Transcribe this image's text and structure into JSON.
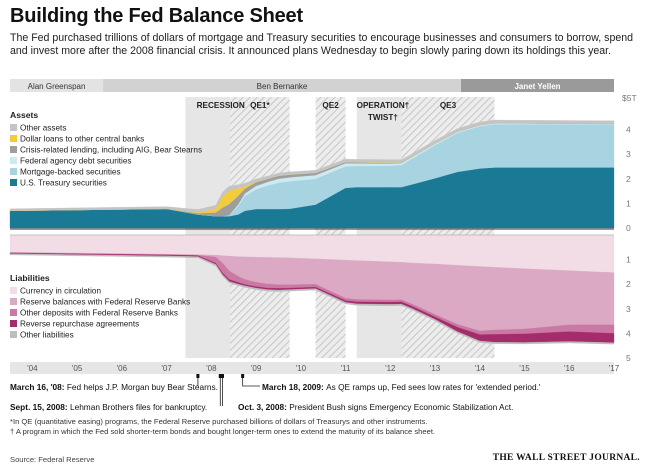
{
  "title": "Building the Fed Balance Sheet",
  "subtitle": "The Fed purchased trillions of dollars of mortgage and Treasury securities to encourage businesses and consumers to borrow, spend and invest more after the 2008 financial crisis. It announced plans Wednesday to begin slowly paring down its holdings this year.",
  "chairs": [
    {
      "name": "Alan Greenspan",
      "start": 2004.0,
      "end": 2006.08
    },
    {
      "name": "Ben Bernanke",
      "start": 2006.08,
      "end": 2014.08
    },
    {
      "name": "Janet Yellen",
      "start": 2014.08,
      "end": 2017.5
    }
  ],
  "periods": [
    {
      "label": "RECESSION",
      "label2": "",
      "start": 2007.92,
      "end": 2009.5,
      "style": "solid"
    },
    {
      "label": "QE1",
      "label2": "",
      "footnote": "*",
      "start": 2008.92,
      "end": 2010.25,
      "style": "hatch"
    },
    {
      "label": "QE2",
      "label2": "",
      "footnote": "",
      "start": 2010.83,
      "end": 2011.5,
      "style": "hatch"
    },
    {
      "label": "OPERATION",
      "label2": "TWIST",
      "footnote": "†",
      "start": 2011.75,
      "end": 2012.92,
      "style": "solid"
    },
    {
      "label": "QE3",
      "label2": "",
      "footnote": "",
      "start": 2012.75,
      "end": 2014.83,
      "style": "hatch"
    }
  ],
  "chart_data": {
    "type": "area",
    "x_ticks": [
      "'04",
      "'05",
      "'06",
      "'07",
      "'08",
      "'09",
      "'10",
      "'11",
      "'12",
      "'13",
      "'14",
      "'15",
      "'16",
      "'17"
    ],
    "assets": {
      "header": "Assets",
      "unit_label": "$5T",
      "y_ticks": [
        "4",
        "3",
        "2",
        "1",
        "0"
      ],
      "ylim": [
        0,
        5
      ],
      "x": [
        2004.0,
        2007.5,
        2008.2,
        2008.6,
        2008.75,
        2008.9,
        2009.1,
        2009.25,
        2009.5,
        2009.75,
        2010.0,
        2010.25,
        2010.83,
        2011.5,
        2011.75,
        2012.5,
        2012.75,
        2013.0,
        2013.5,
        2014.0,
        2014.5,
        2014.83,
        2015.5,
        2016.5,
        2017.5
      ],
      "series": [
        {
          "name": "U.S. Treasury securities",
          "color": "#1a7a95",
          "values": [
            0.7,
            0.78,
            0.55,
            0.48,
            0.48,
            0.48,
            0.55,
            0.7,
            0.77,
            0.77,
            0.77,
            0.78,
            0.95,
            1.63,
            1.66,
            1.66,
            1.66,
            1.78,
            2.02,
            2.28,
            2.42,
            2.46,
            2.46,
            2.46,
            2.46
          ]
        },
        {
          "name": "Mortgage-backed securities",
          "color": "#a8d4e2",
          "values": [
            0,
            0,
            0,
            0,
            0,
            0.02,
            0.35,
            0.6,
            0.8,
            0.95,
            1.07,
            1.12,
            1.05,
            0.88,
            0.86,
            0.87,
            0.9,
            1.05,
            1.35,
            1.58,
            1.72,
            1.76,
            1.76,
            1.76,
            1.76
          ]
        },
        {
          "name": "Federal agency debt securities",
          "color": "#cde9f1",
          "values": [
            0,
            0,
            0,
            0,
            0,
            0.02,
            0.06,
            0.1,
            0.14,
            0.15,
            0.16,
            0.16,
            0.15,
            0.12,
            0.11,
            0.09,
            0.08,
            0.07,
            0.06,
            0.05,
            0.04,
            0.04,
            0.03,
            0.02,
            0.01
          ]
        },
        {
          "name": "Crisis-related lending, including AIG, Bear Stearns",
          "color": "#9e9e9e",
          "values": [
            0,
            0,
            0.05,
            0.15,
            0.35,
            0.45,
            0.35,
            0.2,
            0.15,
            0.12,
            0.12,
            0.11,
            0.09,
            0.05,
            0.04,
            0.02,
            0.01,
            0.01,
            0.01,
            0.01,
            0.01,
            0.01,
            0.01,
            0.01,
            0.01
          ]
        },
        {
          "name": "Dollar loans to other central banks",
          "color": "#f2cc3c",
          "values": [
            0,
            0,
            0.03,
            0.15,
            0.45,
            0.55,
            0.3,
            0.1,
            0.02,
            0.01,
            0,
            0,
            0,
            0,
            0,
            0.02,
            0.01,
            0,
            0,
            0,
            0,
            0,
            0,
            0,
            0
          ]
        },
        {
          "name": "Other assets",
          "color": "#c4c4c4",
          "values": [
            0.08,
            0.09,
            0.12,
            0.15,
            0.18,
            0.18,
            0.15,
            0.12,
            0.11,
            0.11,
            0.11,
            0.11,
            0.11,
            0.12,
            0.12,
            0.12,
            0.12,
            0.12,
            0.12,
            0.12,
            0.12,
            0.12,
            0.12,
            0.12,
            0.12
          ]
        }
      ]
    },
    "liabilities": {
      "header": "Liabilities",
      "y_ticks": [
        "1",
        "2",
        "3",
        "4",
        "5"
      ],
      "ylim": [
        0,
        5
      ],
      "x": [
        2004.0,
        2007.5,
        2008.2,
        2008.6,
        2008.75,
        2008.9,
        2009.1,
        2009.25,
        2009.5,
        2009.75,
        2010.0,
        2010.25,
        2010.83,
        2011.5,
        2011.75,
        2012.5,
        2012.75,
        2013.0,
        2013.5,
        2014.0,
        2014.5,
        2014.83,
        2015.5,
        2016.5,
        2017.5
      ],
      "series": [
        {
          "name": "Currency in circulation",
          "color": "#f2dce6",
          "values": [
            0.7,
            0.78,
            0.8,
            0.82,
            0.84,
            0.86,
            0.88,
            0.89,
            0.9,
            0.91,
            0.92,
            0.93,
            0.97,
            1.02,
            1.04,
            1.09,
            1.11,
            1.14,
            1.18,
            1.23,
            1.28,
            1.31,
            1.37,
            1.45,
            1.53
          ]
        },
        {
          "name": "Reserve balances with Federal Reserve Banks",
          "color": "#dca9c4",
          "values": [
            0.02,
            0.02,
            0.02,
            0.08,
            0.3,
            0.6,
            0.8,
            0.92,
            1.02,
            1.08,
            1.1,
            1.09,
            1.03,
            1.55,
            1.58,
            1.55,
            1.52,
            1.68,
            2.05,
            2.4,
            2.62,
            2.55,
            2.45,
            2.2,
            2.12
          ]
        },
        {
          "name": "Other deposits with Federal Reserve Banks",
          "color": "#c979a3",
          "values": [
            0.01,
            0.01,
            0.02,
            0.25,
            0.4,
            0.35,
            0.25,
            0.2,
            0.18,
            0.17,
            0.15,
            0.14,
            0.12,
            0.1,
            0.1,
            0.09,
            0.09,
            0.09,
            0.1,
            0.12,
            0.15,
            0.18,
            0.2,
            0.28,
            0.35
          ]
        },
        {
          "name": "Reverse repurchase agreements",
          "color": "#a52c6a",
          "values": [
            0.03,
            0.04,
            0.04,
            0.05,
            0.07,
            0.08,
            0.07,
            0.06,
            0.06,
            0.06,
            0.07,
            0.06,
            0.06,
            0.07,
            0.08,
            0.09,
            0.09,
            0.09,
            0.1,
            0.18,
            0.26,
            0.32,
            0.35,
            0.4,
            0.38
          ]
        },
        {
          "name": "Other liabilities",
          "color": "#bdbdbd",
          "values": [
            0.05,
            0.05,
            0.05,
            0.06,
            0.06,
            0.06,
            0.06,
            0.06,
            0.06,
            0.06,
            0.06,
            0.06,
            0.06,
            0.06,
            0.06,
            0.06,
            0.06,
            0.06,
            0.06,
            0.06,
            0.06,
            0.06,
            0.06,
            0.06,
            0.06
          ]
        }
      ]
    },
    "annotations": [
      {
        "date": "March 16, '08:",
        "text": "Fed helps J.P. Morgan buy Bear Stearns.",
        "x": 2008.2
      },
      {
        "date": "March 18, 2009:",
        "text": "As QE ramps up, Fed sees low rates for 'extended period.'",
        "x": 2009.2
      },
      {
        "date": "Sept. 15, 2008:",
        "text": "Lehman Brothers files for bankruptcy.",
        "x": 2008.7
      },
      {
        "date": "Oct. 3, 2008:",
        "text": "President Bush signs Emergency Economic Stabilization Act.",
        "x": 2008.75
      }
    ]
  },
  "footnotes": [
    "*In QE (quantitative easing) programs, the Federal Reserve purchased billions of dollars of Treasurys and other instruments.",
    "† A program in which the Fed sold shorter-term bonds and bought longer-term ones to extend the maturity of its balance sheet."
  ],
  "source": "Source: Federal Reserve",
  "publisher": "THE WALL STREET JOURNAL."
}
